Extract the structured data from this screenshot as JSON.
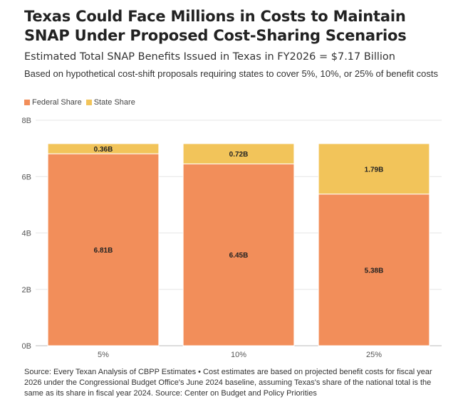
{
  "title": "Texas Could Face Millions in Costs to Maintain SNAP Under Proposed Cost-Sharing Scenarios",
  "subtitle": "Estimated Total SNAP Benefits Issued in Texas in FY2026 = $7.17 Billion",
  "description": "Based on hypothetical cost-shift proposals requiring states to cover 5%, 10%, or 25% of benefit costs",
  "legend": [
    {
      "label": "Federal Share",
      "color": "#f28e5a"
    },
    {
      "label": "State Share",
      "color": "#f2c45a"
    }
  ],
  "source": "Source: Every Texan Analysis of CBPP Estimates • Cost estimates are based on projected benefit costs for fiscal year 2026 under the Congressional Budget Office's June 2024 baseline, assuming Texas's share of the national total is the same as its share in fiscal year 2024. Source: Center on Budget and Policy Priorities",
  "chart_data": {
    "type": "bar",
    "stacked": true,
    "categories": [
      "5%",
      "10%",
      "25%"
    ],
    "series": [
      {
        "name": "Federal Share",
        "color": "#f28e5a",
        "values": [
          6.81,
          6.45,
          5.38
        ],
        "labels": [
          "6.81B",
          "6.45B",
          "5.38B"
        ]
      },
      {
        "name": "State Share",
        "color": "#f2c45a",
        "values": [
          0.36,
          0.72,
          1.79
        ],
        "labels": [
          "0.36B",
          "0.72B",
          "1.79B"
        ]
      }
    ],
    "ylim": [
      0,
      8
    ],
    "yticks": [
      0,
      2,
      4,
      6,
      8
    ],
    "ytick_labels": [
      "0B",
      "2B",
      "4B",
      "6B",
      "8B"
    ],
    "grid": true,
    "legend_position": "top-left",
    "xlabel": "",
    "ylabel": ""
  }
}
